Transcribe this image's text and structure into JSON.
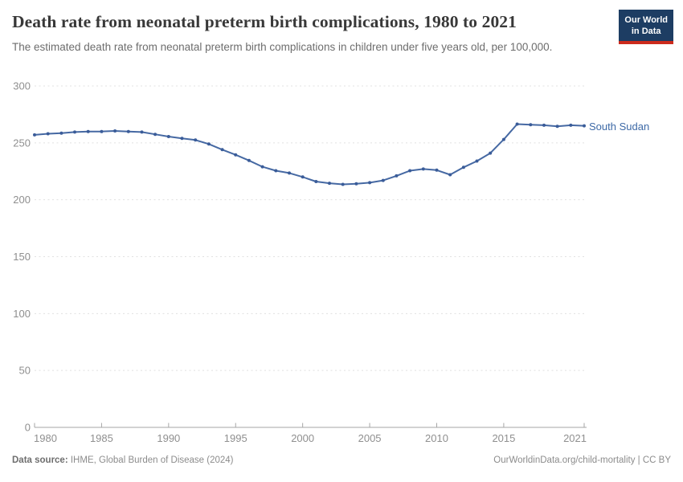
{
  "header": {
    "title": "Death rate from neonatal preterm birth complications, 1980 to 2021",
    "subtitle": "The estimated death rate from neonatal preterm birth complications in children under five years old, per 100,000.",
    "logo": {
      "line1": "Our World",
      "line2": "in Data"
    }
  },
  "chart_data": {
    "type": "line",
    "title": "Death rate from neonatal preterm birth complications, 1980 to 2021",
    "entity_label": "South Sudan",
    "xlim": [
      1980,
      2021
    ],
    "ylim": [
      0,
      300
    ],
    "x_ticks": [
      1980,
      1985,
      1990,
      1995,
      2000,
      2005,
      2010,
      2015,
      2021
    ],
    "y_ticks": [
      0,
      50,
      100,
      150,
      200,
      250,
      300
    ],
    "grid": "horizontal-dashed",
    "legend_position": "end-of-line-label",
    "series": [
      {
        "name": "South Sudan",
        "color": "#4669a3",
        "x": [
          1980,
          1981,
          1982,
          1983,
          1984,
          1985,
          1986,
          1987,
          1988,
          1989,
          1990,
          1991,
          1992,
          1993,
          1994,
          1995,
          1996,
          1997,
          1998,
          1999,
          2000,
          2001,
          2002,
          2003,
          2004,
          2005,
          2006,
          2007,
          2008,
          2009,
          2010,
          2011,
          2012,
          2013,
          2014,
          2015,
          2016,
          2017,
          2018,
          2019,
          2020,
          2021
        ],
        "values": [
          257,
          258,
          258.5,
          259.5,
          260,
          260,
          260.5,
          260,
          259.5,
          257.5,
          255.5,
          254,
          252.5,
          249,
          244,
          239.5,
          234.5,
          229,
          225.5,
          223.5,
          220,
          216,
          214.5,
          213.5,
          214,
          215,
          217,
          221,
          225.5,
          227,
          226,
          222,
          228.5,
          234,
          241,
          253,
          266.5,
          266,
          265.5,
          264.5,
          265.5,
          265
        ]
      }
    ]
  },
  "footer": {
    "datasource_label": "Data source:",
    "datasource_value": " IHME, Global Burden of Disease (2024)",
    "link": "OurWorldinData.org/child-mortality | CC BY"
  },
  "colors": {
    "line": "#4669a3",
    "marker": "#3a5c99",
    "entity_label": "#3d69a6",
    "grid": "#e0e0e0",
    "axis": "#a6a6a6",
    "tick_label": "#8f8f8f",
    "logo_bg": "#1d3d63",
    "logo_red": "#cc2b1d"
  }
}
